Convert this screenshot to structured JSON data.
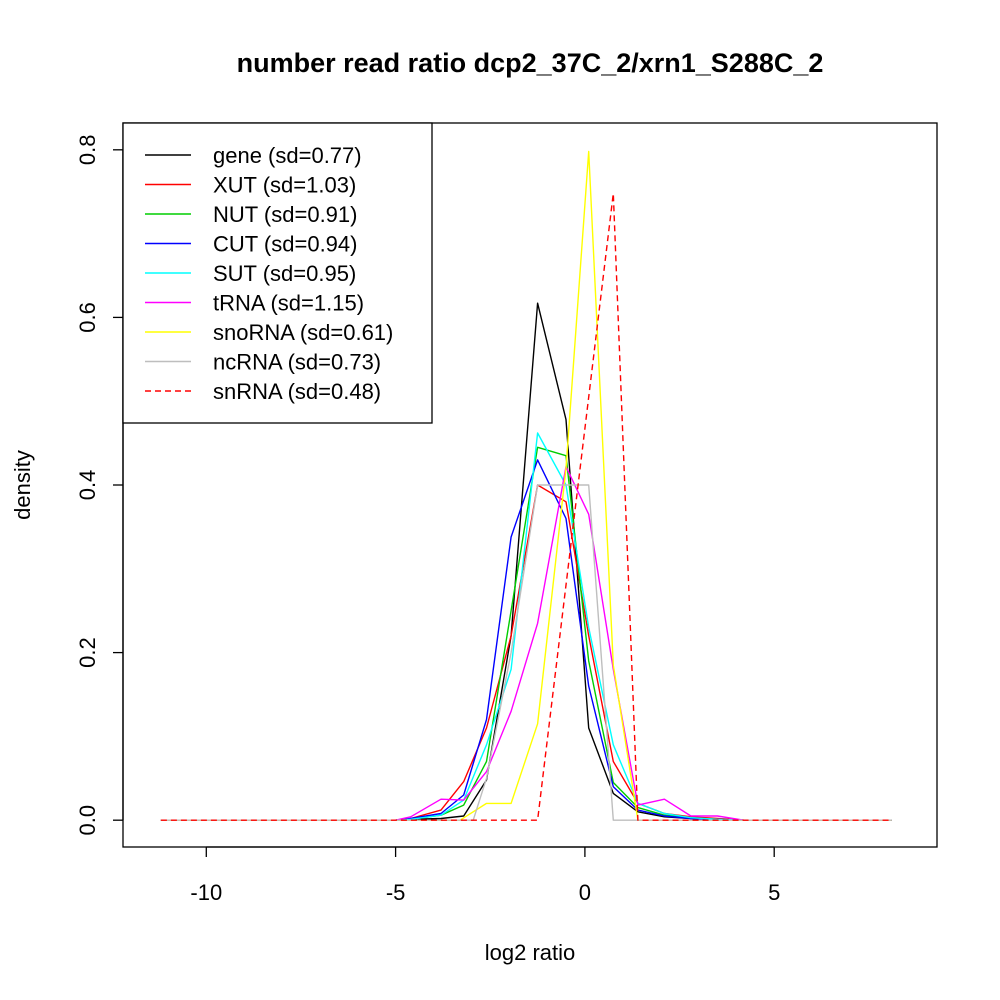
{
  "chart_data": {
    "type": "line",
    "title": "number read ratio dcp2_37C_2/xrn1_S288C_2",
    "xlabel": "log2 ratio",
    "ylabel": "density",
    "xlim": [
      -12.2,
      9.3
    ],
    "ylim": [
      -0.032,
      0.832
    ],
    "xticks": [
      -10,
      -5,
      0,
      5
    ],
    "xtick_labels": [
      "-10",
      "-5",
      "0",
      "5"
    ],
    "yticks": [
      0.0,
      0.2,
      0.4,
      0.6,
      0.8
    ],
    "ytick_labels": [
      "0.0",
      "0.2",
      "0.4",
      "0.6",
      "0.8"
    ],
    "legend_position": "top-left",
    "grid": false,
    "series": [
      {
        "name": "gene (sd=0.77)",
        "color": "#000000",
        "dash": "solid",
        "x": [
          -11.2,
          -5.0,
          -4.6,
          -3.8,
          -3.2,
          -2.6,
          -1.95,
          -1.25,
          -0.5,
          0.1,
          0.75,
          1.4,
          2.1,
          2.8,
          3.5,
          4.2,
          8.1
        ],
        "y": [
          0,
          0,
          0.001,
          0.002,
          0.005,
          0.048,
          0.22,
          0.617,
          0.478,
          0.11,
          0.032,
          0.01,
          0.004,
          0.002,
          0.001,
          0,
          0
        ]
      },
      {
        "name": "XUT (sd=1.03)",
        "color": "#ff0000",
        "dash": "solid",
        "x": [
          -11.2,
          -5.0,
          -4.6,
          -3.8,
          -3.2,
          -2.6,
          -1.95,
          -1.25,
          -0.5,
          0.1,
          0.75,
          1.4,
          2.1,
          2.8,
          3.5,
          4.2,
          8.1
        ],
        "y": [
          0,
          0,
          0.002,
          0.012,
          0.046,
          0.11,
          0.22,
          0.4,
          0.38,
          0.22,
          0.07,
          0.02,
          0.008,
          0.004,
          0.002,
          0,
          0
        ]
      },
      {
        "name": "NUT (sd=0.91)",
        "color": "#00cd00",
        "dash": "solid",
        "x": [
          -11.2,
          -5.0,
          -4.6,
          -3.8,
          -3.2,
          -2.6,
          -1.95,
          -1.25,
          -0.5,
          0.1,
          0.75,
          1.4,
          2.1,
          2.8,
          3.5,
          4.2,
          8.1
        ],
        "y": [
          0,
          0,
          0.001,
          0.006,
          0.018,
          0.07,
          0.25,
          0.445,
          0.435,
          0.19,
          0.045,
          0.015,
          0.006,
          0.003,
          0.001,
          0,
          0
        ]
      },
      {
        "name": "CUT (sd=0.94)",
        "color": "#0000ff",
        "dash": "solid",
        "x": [
          -11.2,
          -5.0,
          -4.6,
          -3.8,
          -3.2,
          -2.6,
          -1.95,
          -1.25,
          -0.5,
          0.1,
          0.75,
          1.4,
          2.1,
          2.8,
          3.5,
          4.2,
          8.1
        ],
        "y": [
          0,
          0,
          0.002,
          0.008,
          0.03,
          0.12,
          0.338,
          0.43,
          0.36,
          0.16,
          0.04,
          0.012,
          0.005,
          0.002,
          0.001,
          0,
          0
        ]
      },
      {
        "name": "SUT (sd=0.95)",
        "color": "#00ffff",
        "dash": "solid",
        "x": [
          -11.2,
          -5.0,
          -4.6,
          -3.8,
          -3.2,
          -2.6,
          -1.95,
          -1.25,
          -0.5,
          0.1,
          0.75,
          1.4,
          2.1,
          2.8,
          3.5,
          4.2,
          8.1
        ],
        "y": [
          0,
          0,
          0.001,
          0.006,
          0.024,
          0.09,
          0.18,
          0.462,
          0.4,
          0.23,
          0.09,
          0.02,
          0.008,
          0.003,
          0.001,
          0,
          0
        ]
      },
      {
        "name": "tRNA (sd=1.15)",
        "color": "#ff00ff",
        "dash": "solid",
        "x": [
          -11.2,
          -5.0,
          -4.6,
          -3.8,
          -3.2,
          -2.6,
          -1.95,
          -1.25,
          -0.5,
          0.1,
          0.75,
          1.4,
          2.1,
          2.8,
          3.5,
          4.2,
          8.1
        ],
        "y": [
          0,
          0,
          0.004,
          0.025,
          0.024,
          0.058,
          0.13,
          0.235,
          0.422,
          0.365,
          0.18,
          0.018,
          0.025,
          0.005,
          0.005,
          0,
          0
        ]
      },
      {
        "name": "snoRNA (sd=0.61)",
        "color": "#ffff00",
        "dash": "solid",
        "x": [
          -11.2,
          -3.3,
          -2.6,
          -1.95,
          -1.25,
          -0.5,
          0.1,
          0.75,
          1.4,
          8.1
        ],
        "y": [
          0,
          0,
          0.02,
          0.02,
          0.115,
          0.42,
          0.798,
          0.185,
          0,
          0
        ]
      },
      {
        "name": "ncRNA (sd=0.73)",
        "color": "#bebebe",
        "dash": "solid",
        "x": [
          -11.2,
          -2.95,
          -2.6,
          -1.95,
          -1.25,
          -0.5,
          0.1,
          0.75,
          8.1
        ],
        "y": [
          0,
          0,
          0.05,
          0.2,
          0.4,
          0.4,
          0.4,
          0,
          0
        ]
      },
      {
        "name": "snRNA (sd=0.48)",
        "color": "#ff0000",
        "dash": "dashed",
        "x": [
          -11.2,
          -1.25,
          0.75,
          1.4,
          8.1
        ],
        "y": [
          0,
          0,
          0.748,
          0,
          0
        ]
      }
    ]
  }
}
